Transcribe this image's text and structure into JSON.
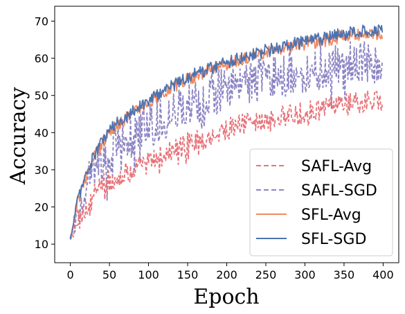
{
  "chart_data": {
    "type": "line",
    "xlabel": "Epoch",
    "ylabel": "Accuracy",
    "xlim": [
      -20,
      420
    ],
    "ylim": [
      5,
      74
    ],
    "xticks": [
      0,
      50,
      100,
      150,
      200,
      250,
      300,
      350,
      400
    ],
    "yticks": [
      10,
      20,
      30,
      40,
      50,
      60,
      70
    ],
    "grid": false,
    "legend_position": "bottom-right",
    "x_range": [
      0,
      399
    ],
    "series": [
      {
        "name": "SAFL-Avg",
        "color": "#E8737A",
        "dash": "dashed",
        "x": [
          0,
          10,
          20,
          30,
          40,
          50,
          60,
          80,
          100,
          120,
          150,
          180,
          200,
          230,
          250,
          280,
          300,
          330,
          350,
          380,
          399
        ],
        "y": [
          11,
          16,
          20,
          23,
          26,
          27,
          28,
          30,
          32,
          34,
          37,
          39,
          41,
          42.5,
          43.5,
          44.5,
          45.5,
          46.5,
          47.5,
          48.5,
          49
        ]
      },
      {
        "name": "SAFL-SGD",
        "color": "#8C84C4",
        "dash": "dashed",
        "x": [
          0,
          10,
          20,
          30,
          40,
          50,
          60,
          80,
          100,
          120,
          150,
          180,
          200,
          230,
          250,
          280,
          300,
          330,
          350,
          380,
          399
        ],
        "y": [
          11,
          20,
          25,
          29,
          32,
          35,
          37,
          40,
          42,
          44,
          47,
          50,
          52,
          53.5,
          54.5,
          56,
          57,
          58,
          58.5,
          59,
          59.5
        ]
      },
      {
        "name": "SFL-Avg",
        "color": "#F28A62",
        "dash": "solid",
        "x": [
          0,
          10,
          20,
          30,
          40,
          50,
          60,
          80,
          100,
          120,
          150,
          180,
          200,
          230,
          250,
          280,
          300,
          330,
          350,
          380,
          399
        ],
        "y": [
          11,
          22,
          28,
          33,
          37,
          40,
          42,
          45.5,
          48,
          51,
          54.5,
          57,
          58.5,
          60.5,
          61.5,
          63,
          64,
          65,
          66,
          66.5,
          67
        ]
      },
      {
        "name": "SFL-SGD",
        "color": "#4C72B0",
        "dash": "solid",
        "x": [
          0,
          10,
          20,
          30,
          40,
          50,
          60,
          80,
          100,
          120,
          150,
          180,
          200,
          230,
          250,
          280,
          300,
          330,
          350,
          380,
          399
        ],
        "y": [
          11,
          22.5,
          28.5,
          33.5,
          37.5,
          40.5,
          42.5,
          46,
          48.5,
          51.5,
          55,
          57.5,
          59,
          61,
          62,
          63.5,
          64.5,
          65.5,
          66.5,
          67.5,
          68
        ]
      }
    ],
    "noise_amplitude": [
      3.0,
      6.0,
      1.8,
      1.8
    ]
  }
}
